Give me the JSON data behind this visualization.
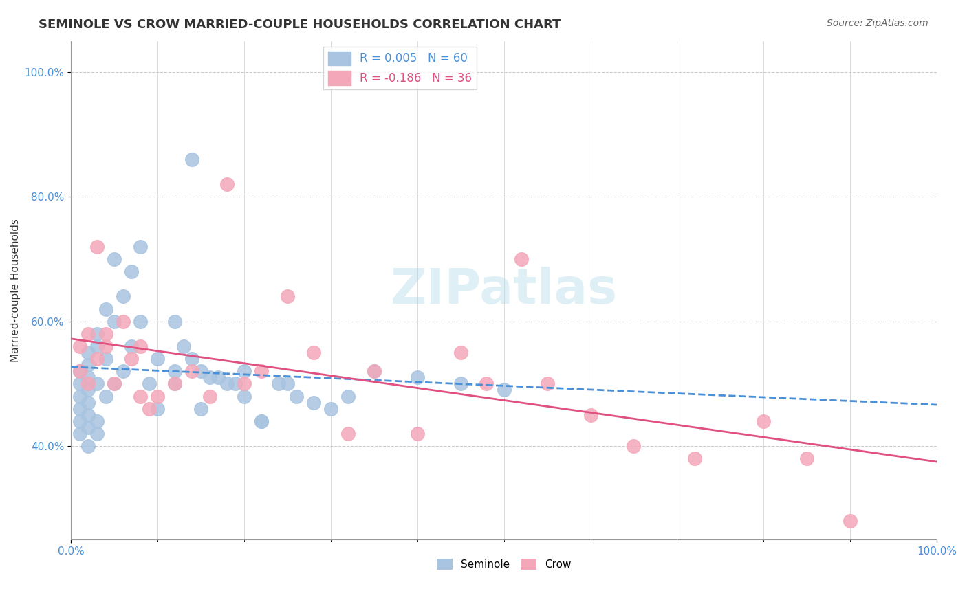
{
  "title": "SEMINOLE VS CROW MARRIED-COUPLE HOUSEHOLDS CORRELATION CHART",
  "source_text": "Source: ZipAtlas.com",
  "xlabel": "",
  "ylabel": "Married-couple Households",
  "xlim": [
    0.0,
    1.0
  ],
  "ylim": [
    0.0,
    1.0
  ],
  "xtick_labels": [
    "0.0%",
    "100.0%"
  ],
  "ytick_labels": [
    "40.0%",
    "60.0%",
    "80.0%",
    "100.0%"
  ],
  "seminole_color": "#a8c4e0",
  "crow_color": "#f4a7b9",
  "seminole_line_color": "#4a90d9",
  "crow_line_color": "#e05080",
  "legend_seminole": "R = 0.005   N = 60",
  "legend_crow": "R = -0.186   N = 36",
  "watermark": "ZIPatlas",
  "R_seminole": 0.005,
  "R_crow": -0.186,
  "seminole_x": [
    0.01,
    0.01,
    0.01,
    0.01,
    0.01,
    0.01,
    0.02,
    0.02,
    0.02,
    0.02,
    0.02,
    0.02,
    0.02,
    0.02,
    0.03,
    0.03,
    0.03,
    0.03,
    0.03,
    0.04,
    0.04,
    0.04,
    0.05,
    0.05,
    0.05,
    0.06,
    0.06,
    0.07,
    0.07,
    0.08,
    0.08,
    0.09,
    0.1,
    0.1,
    0.12,
    0.12,
    0.13,
    0.14,
    0.14,
    0.15,
    0.16,
    0.17,
    0.18,
    0.19,
    0.2,
    0.22,
    0.24,
    0.26,
    0.28,
    0.3,
    0.12,
    0.15,
    0.2,
    0.25,
    0.32,
    0.35,
    0.4,
    0.45,
    0.5,
    0.22
  ],
  "seminole_y": [
    0.48,
    0.5,
    0.52,
    0.46,
    0.44,
    0.42,
    0.53,
    0.51,
    0.49,
    0.47,
    0.45,
    0.43,
    0.55,
    0.4,
    0.58,
    0.56,
    0.5,
    0.44,
    0.42,
    0.62,
    0.54,
    0.48,
    0.7,
    0.6,
    0.5,
    0.64,
    0.52,
    0.68,
    0.56,
    0.72,
    0.6,
    0.5,
    0.54,
    0.46,
    0.6,
    0.52,
    0.56,
    0.86,
    0.54,
    0.52,
    0.51,
    0.51,
    0.5,
    0.5,
    0.52,
    0.44,
    0.5,
    0.48,
    0.47,
    0.46,
    0.5,
    0.46,
    0.48,
    0.5,
    0.48,
    0.52,
    0.51,
    0.5,
    0.49,
    0.44
  ],
  "crow_x": [
    0.01,
    0.01,
    0.02,
    0.02,
    0.03,
    0.03,
    0.04,
    0.04,
    0.05,
    0.06,
    0.07,
    0.08,
    0.08,
    0.09,
    0.1,
    0.12,
    0.14,
    0.16,
    0.18,
    0.2,
    0.22,
    0.25,
    0.28,
    0.32,
    0.35,
    0.4,
    0.45,
    0.48,
    0.52,
    0.55,
    0.6,
    0.65,
    0.72,
    0.8,
    0.85,
    0.9
  ],
  "crow_y": [
    0.56,
    0.52,
    0.58,
    0.5,
    0.72,
    0.54,
    0.56,
    0.58,
    0.5,
    0.6,
    0.54,
    0.48,
    0.56,
    0.46,
    0.48,
    0.5,
    0.52,
    0.48,
    0.82,
    0.5,
    0.52,
    0.64,
    0.55,
    0.42,
    0.52,
    0.42,
    0.55,
    0.5,
    0.7,
    0.5,
    0.45,
    0.4,
    0.38,
    0.44,
    0.38,
    0.28
  ]
}
